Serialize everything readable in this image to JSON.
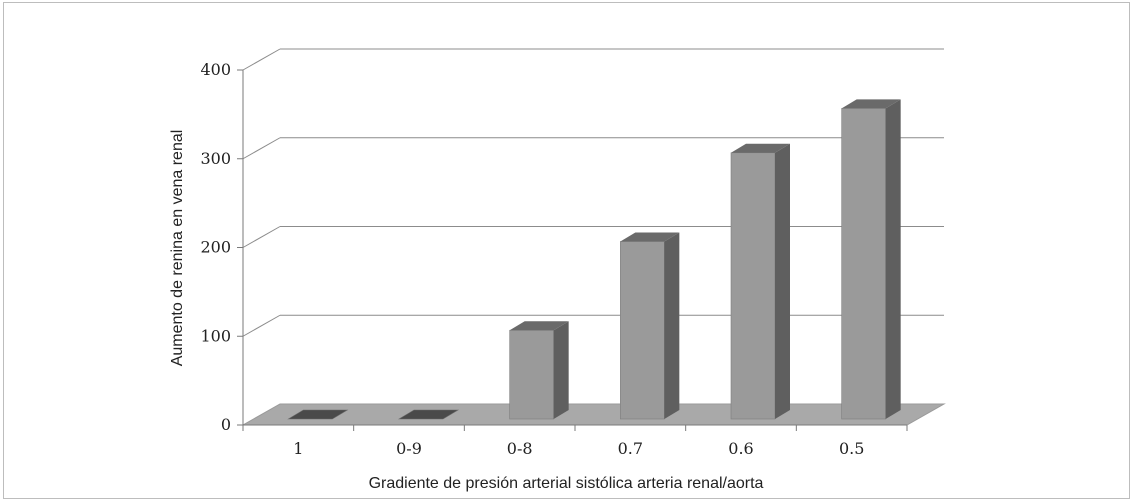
{
  "chart_data": {
    "type": "bar",
    "categories": [
      "1",
      "0-9",
      "0-8",
      "0.7",
      "0.6",
      "0.5"
    ],
    "values": [
      0,
      0,
      100,
      200,
      300,
      350
    ],
    "title": "",
    "xlabel": "Gradiente de presión arterial sistólica arteria renal/aorta",
    "ylabel": "Aumento de renina en vena renal",
    "ylim": [
      0,
      400
    ],
    "yticks": [
      0,
      100,
      200,
      300,
      400
    ],
    "grid": true,
    "style": "3d-column",
    "colors": {
      "bar_front": "#9a9a9a",
      "bar_side": "#5f5f5f",
      "bar_top": "#6a6a6a",
      "floor": "#a9a9a9",
      "gridline": "#8c8c8c"
    }
  }
}
